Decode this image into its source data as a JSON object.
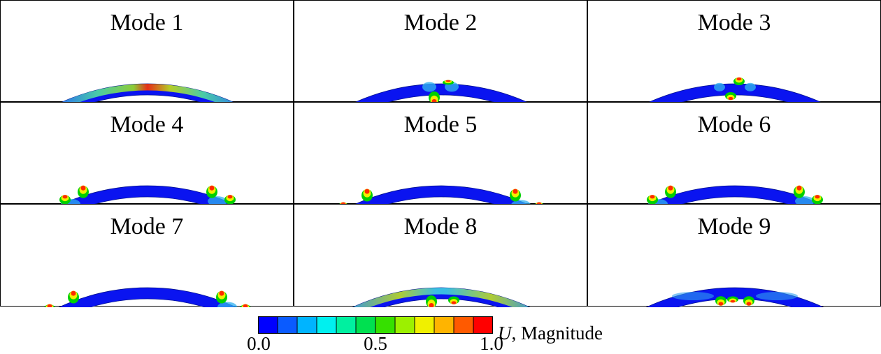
{
  "figure": {
    "modes": [
      {
        "title": "Mode 1",
        "pattern": "global"
      },
      {
        "title": "Mode 2",
        "pattern": "center-dip"
      },
      {
        "title": "Mode 3",
        "pattern": "center-small"
      },
      {
        "title": "Mode 4",
        "pattern": "side-waves"
      },
      {
        "title": "Mode 5",
        "pattern": "side-waves"
      },
      {
        "title": "Mode 6",
        "pattern": "side-waves"
      },
      {
        "title": "Mode 7",
        "pattern": "side-waves"
      },
      {
        "title": "Mode 8",
        "pattern": "global-center"
      },
      {
        "title": "Mode 9",
        "pattern": "center-double"
      }
    ]
  },
  "colorbar": {
    "label_symbol": "U",
    "label_rest": ", Magnitude",
    "ticks": [
      "0.0",
      "0.5",
      "1.0"
    ],
    "tick_values": [
      0.0,
      0.5,
      1.0
    ],
    "colors": [
      "#0000ff",
      "#0a5bff",
      "#00b4ff",
      "#00f0ef",
      "#00f0a0",
      "#00e050",
      "#36e000",
      "#9cf000",
      "#f0f000",
      "#ffb400",
      "#ff5a00",
      "#ff0000"
    ]
  }
}
